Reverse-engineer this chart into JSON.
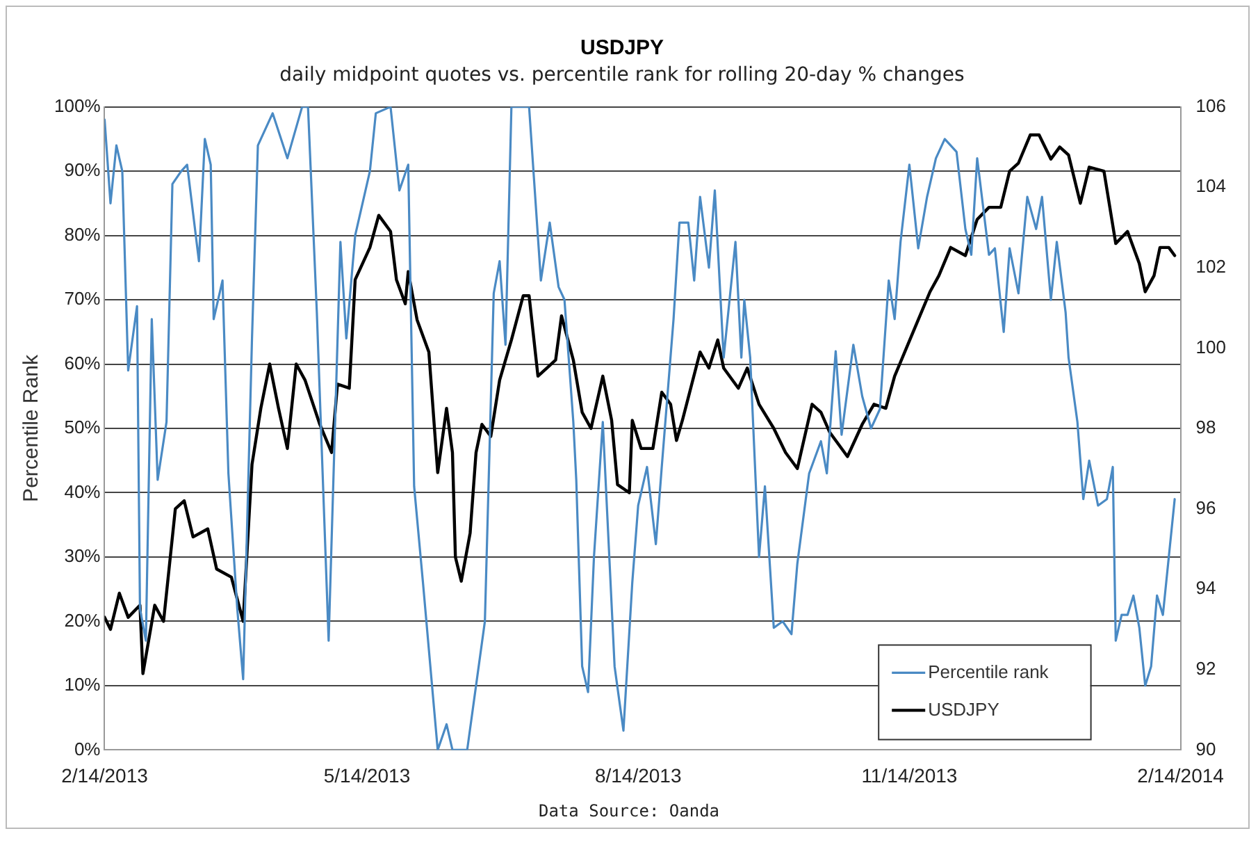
{
  "chart_data": {
    "type": "line",
    "title": "USDJPY",
    "subtitle": "daily midpoint quotes vs. percentile rank for rolling 20-day % changes",
    "ylabel": "Percentile Rank",
    "annotations": [
      "Data Source: Oanda"
    ],
    "xlim": [
      "2013-02-14",
      "2014-02-14"
    ],
    "xticks": [
      {
        "value": "2013-02-14",
        "label": "2/14/2013"
      },
      {
        "value": "2013-05-14",
        "label": "5/14/2013"
      },
      {
        "value": "2013-08-14",
        "label": "8/14/2013"
      },
      {
        "value": "2013-11-14",
        "label": "11/14/2013"
      },
      {
        "value": "2014-02-14",
        "label": "2/14/2014"
      }
    ],
    "ylim": [
      0,
      100
    ],
    "yticks": [
      {
        "value": 0,
        "label": "0%"
      },
      {
        "value": 10,
        "label": "10%"
      },
      {
        "value": 20,
        "label": "20%"
      },
      {
        "value": 30,
        "label": "30%"
      },
      {
        "value": 40,
        "label": "40%"
      },
      {
        "value": 50,
        "label": "50%"
      },
      {
        "value": 60,
        "label": "60%"
      },
      {
        "value": 70,
        "label": "70%"
      },
      {
        "value": 80,
        "label": "80%"
      },
      {
        "value": 90,
        "label": "90%"
      },
      {
        "value": 100,
        "label": "100%"
      }
    ],
    "y2lim": [
      90,
      106
    ],
    "y2ticks": [
      90,
      92,
      94,
      96,
      98,
      100,
      102,
      104,
      106
    ],
    "grid": "y",
    "legend": "bottom right",
    "marker": "none",
    "line_style": "solid",
    "series": [
      {
        "name": "Percentile rank",
        "color": "#4a8ac4",
        "x": [
          "2013-02-14",
          "2013-02-16",
          "2013-02-18",
          "2013-02-20",
          "2013-02-22",
          "2013-02-25",
          "2013-02-26",
          "2013-02-28",
          "2013-03-02",
          "2013-03-04",
          "2013-03-07",
          "2013-03-09",
          "2013-03-12",
          "2013-03-14",
          "2013-03-18",
          "2013-03-20",
          "2013-03-22",
          "2013-03-23",
          "2013-03-26",
          "2013-03-28",
          "2013-03-31",
          "2013-04-02",
          "2013-04-05",
          "2013-04-07",
          "2013-04-12",
          "2013-04-17",
          "2013-04-22",
          "2013-04-24",
          "2013-04-27",
          "2013-05-01",
          "2013-05-05",
          "2013-05-07",
          "2013-05-10",
          "2013-05-15",
          "2013-05-17",
          "2013-05-22",
          "2013-05-25",
          "2013-05-28",
          "2013-05-30",
          "2013-06-02",
          "2013-06-07",
          "2013-06-10",
          "2013-06-12",
          "2013-06-17",
          "2013-06-23",
          "2013-06-26",
          "2013-06-28",
          "2013-06-30",
          "2013-07-02",
          "2013-07-08",
          "2013-07-12",
          "2013-07-15",
          "2013-07-18",
          "2013-07-20",
          "2013-07-23",
          "2013-07-24",
          "2013-07-26",
          "2013-07-28",
          "2013-07-30",
          "2013-08-02",
          "2013-08-06",
          "2013-08-09",
          "2013-08-12",
          "2013-08-14",
          "2013-08-17",
          "2013-08-20",
          "2013-08-22",
          "2013-08-26",
          "2013-08-28",
          "2013-08-31",
          "2013-09-02",
          "2013-09-04",
          "2013-09-07",
          "2013-09-09",
          "2013-09-12",
          "2013-09-14",
          "2013-09-16",
          "2013-09-18",
          "2013-09-19",
          "2013-09-21",
          "2013-09-24",
          "2013-09-26",
          "2013-09-29",
          "2013-10-02",
          "2013-10-05",
          "2013-10-07",
          "2013-10-11",
          "2013-10-15",
          "2013-10-17",
          "2013-10-20",
          "2013-10-22",
          "2013-10-26",
          "2013-10-29",
          "2013-11-01",
          "2013-11-04",
          "2013-11-07",
          "2013-11-09",
          "2013-11-11",
          "2013-11-14",
          "2013-11-17",
          "2013-11-20",
          "2013-11-23",
          "2013-11-26",
          "2013-11-30",
          "2013-12-03",
          "2013-12-05",
          "2013-12-07",
          "2013-12-11",
          "2013-12-13",
          "2013-12-16",
          "2013-12-18",
          "2013-12-21",
          "2013-12-24",
          "2013-12-27",
          "2013-12-29",
          "2014-01-01",
          "2014-01-03",
          "2014-01-06",
          "2014-01-07",
          "2014-01-10",
          "2014-01-12",
          "2014-01-14",
          "2014-01-17",
          "2014-01-20",
          "2014-01-22",
          "2014-01-23",
          "2014-01-25",
          "2014-01-27",
          "2014-01-29",
          "2014-01-31",
          "2014-02-02",
          "2014-02-04",
          "2014-02-06",
          "2014-02-08",
          "2014-02-12"
        ],
        "values": [
          98,
          85,
          94,
          90,
          59,
          69,
          22,
          17,
          67,
          42,
          51,
          88,
          90,
          91,
          76,
          95,
          91,
          67,
          73,
          43,
          22,
          11,
          64,
          94,
          99,
          92,
          100,
          100,
          68,
          17,
          79,
          64,
          80,
          90,
          99,
          100,
          87,
          91,
          41,
          26,
          0,
          4,
          0,
          0,
          20,
          71,
          76,
          63,
          100,
          100,
          73,
          82,
          72,
          70,
          51,
          42,
          13,
          9,
          30,
          51,
          13,
          3,
          26,
          38,
          44,
          32,
          44,
          67,
          82,
          82,
          73,
          86,
          75,
          87,
          61,
          70,
          79,
          61,
          70,
          61,
          30,
          41,
          19,
          20,
          18,
          29,
          43,
          48,
          43,
          62,
          49,
          63,
          55,
          50,
          53,
          73,
          67,
          79,
          91,
          78,
          86,
          92,
          95,
          93,
          81,
          77,
          92,
          77,
          78,
          65,
          78,
          71,
          86,
          81,
          86,
          70,
          79,
          68,
          61,
          51,
          39,
          45,
          38,
          39,
          44,
          17,
          21,
          21,
          24,
          19,
          10,
          13,
          24,
          21,
          39
        ]
      },
      {
        "name": "USDJPY",
        "color": "#000000",
        "axis": "y2",
        "x": [
          "2013-02-14",
          "2013-02-16",
          "2013-02-19",
          "2013-02-22",
          "2013-02-26",
          "2013-02-27",
          "2013-03-03",
          "2013-03-06",
          "2013-03-10",
          "2013-03-13",
          "2013-03-16",
          "2013-03-21",
          "2013-03-24",
          "2013-03-29",
          "2013-04-02",
          "2013-04-05",
          "2013-04-08",
          "2013-04-11",
          "2013-04-14",
          "2013-04-17",
          "2013-04-20",
          "2013-04-23",
          "2013-04-28",
          "2013-05-02",
          "2013-05-04",
          "2013-05-08",
          "2013-05-10",
          "2013-05-15",
          "2013-05-18",
          "2013-05-22",
          "2013-05-24",
          "2013-05-27",
          "2013-05-28",
          "2013-05-31",
          "2013-06-04",
          "2013-06-07",
          "2013-06-10",
          "2013-06-12",
          "2013-06-13",
          "2013-06-15",
          "2013-06-18",
          "2013-06-20",
          "2013-06-22",
          "2013-06-25",
          "2013-06-28",
          "2013-07-02",
          "2013-07-06",
          "2013-07-08",
          "2013-07-11",
          "2013-07-14",
          "2013-07-17",
          "2013-07-19",
          "2013-07-23",
          "2013-07-26",
          "2013-07-29",
          "2013-08-02",
          "2013-08-05",
          "2013-08-07",
          "2013-08-11",
          "2013-08-12",
          "2013-08-15",
          "2013-08-19",
          "2013-08-22",
          "2013-08-25",
          "2013-08-27",
          "2013-08-29",
          "2013-09-04",
          "2013-09-07",
          "2013-09-10",
          "2013-09-12",
          "2013-09-17",
          "2013-09-20",
          "2013-09-24",
          "2013-09-29",
          "2013-10-03",
          "2013-10-07",
          "2013-10-12",
          "2013-10-15",
          "2013-10-18",
          "2013-10-24",
          "2013-10-29",
          "2013-11-02",
          "2013-11-06",
          "2013-11-09",
          "2013-11-13",
          "2013-11-17",
          "2013-11-21",
          "2013-11-24",
          "2013-11-28",
          "2013-12-03",
          "2013-12-07",
          "2013-12-11",
          "2013-12-15",
          "2013-12-18",
          "2013-12-21",
          "2013-12-25",
          "2013-12-28",
          "2014-01-01",
          "2014-01-04",
          "2014-01-07",
          "2014-01-11",
          "2014-01-14",
          "2014-01-19",
          "2014-01-23",
          "2014-01-27",
          "2014-01-31",
          "2014-02-02",
          "2014-02-05",
          "2014-02-07",
          "2014-02-10",
          "2014-02-12"
        ],
        "values": [
          93.3,
          93.0,
          93.9,
          93.3,
          93.6,
          91.9,
          93.6,
          93.2,
          96.0,
          96.2,
          95.3,
          95.5,
          94.5,
          94.3,
          93.2,
          97.1,
          98.5,
          99.6,
          98.5,
          97.5,
          99.6,
          99.2,
          98.1,
          97.4,
          99.1,
          99.0,
          101.7,
          102.5,
          103.3,
          102.9,
          101.7,
          101.1,
          101.9,
          100.7,
          99.9,
          96.9,
          98.5,
          97.4,
          94.8,
          94.2,
          95.4,
          97.4,
          98.1,
          97.8,
          99.2,
          100.2,
          101.3,
          101.3,
          99.3,
          99.5,
          99.7,
          100.8,
          99.7,
          98.4,
          98.0,
          99.3,
          98.2,
          96.6,
          96.4,
          98.2,
          97.5,
          97.5,
          98.9,
          98.6,
          97.7,
          98.2,
          99.9,
          99.5,
          100.2,
          99.5,
          99.0,
          99.5,
          98.6,
          98.0,
          97.4,
          97.0,
          98.6,
          98.4,
          97.9,
          97.3,
          98.1,
          98.6,
          98.5,
          99.3,
          100.0,
          100.7,
          101.4,
          101.8,
          102.5,
          102.3,
          103.2,
          103.5,
          103.5,
          104.4,
          104.6,
          105.3,
          105.3,
          104.7,
          105.0,
          104.8,
          103.6,
          104.5,
          104.4,
          102.6,
          102.9,
          102.1,
          101.4,
          101.8,
          102.5,
          102.5,
          102.3
        ]
      }
    ]
  }
}
